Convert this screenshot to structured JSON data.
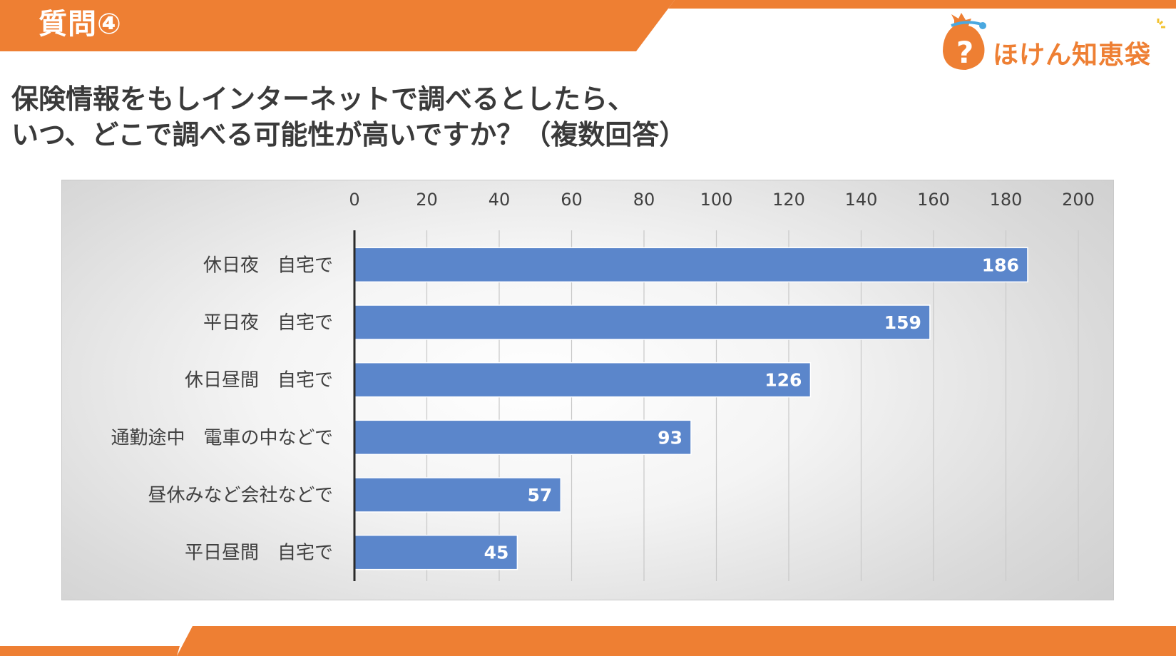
{
  "slide": {
    "label": "質問④",
    "accent_color": "#ee7f33"
  },
  "logo": {
    "icon": "question-bag-icon",
    "text": "ほけん知恵袋"
  },
  "question": {
    "line1": "保険情報をもしインターネットで調べるとしたら、",
    "line2": "いつ、どこで調べる可能性が高いですか？（複数回答）"
  },
  "chart_data": {
    "type": "bar",
    "orientation": "horizontal",
    "categories": [
      "休日夜　自宅で",
      "平日夜　自宅で",
      "休日昼間　自宅で",
      "通勤途中　電車の中などで",
      "昼休みなど会社などで",
      "平日昼間　自宅で"
    ],
    "values": [
      186,
      159,
      126,
      93,
      57,
      45
    ],
    "xlim": [
      0,
      200
    ],
    "ticks": [
      0,
      20,
      40,
      60,
      80,
      100,
      120,
      140,
      160,
      180,
      200
    ],
    "axis_position": "top",
    "grid": true,
    "data_labels": true,
    "bar_color": "#5b86cb"
  }
}
